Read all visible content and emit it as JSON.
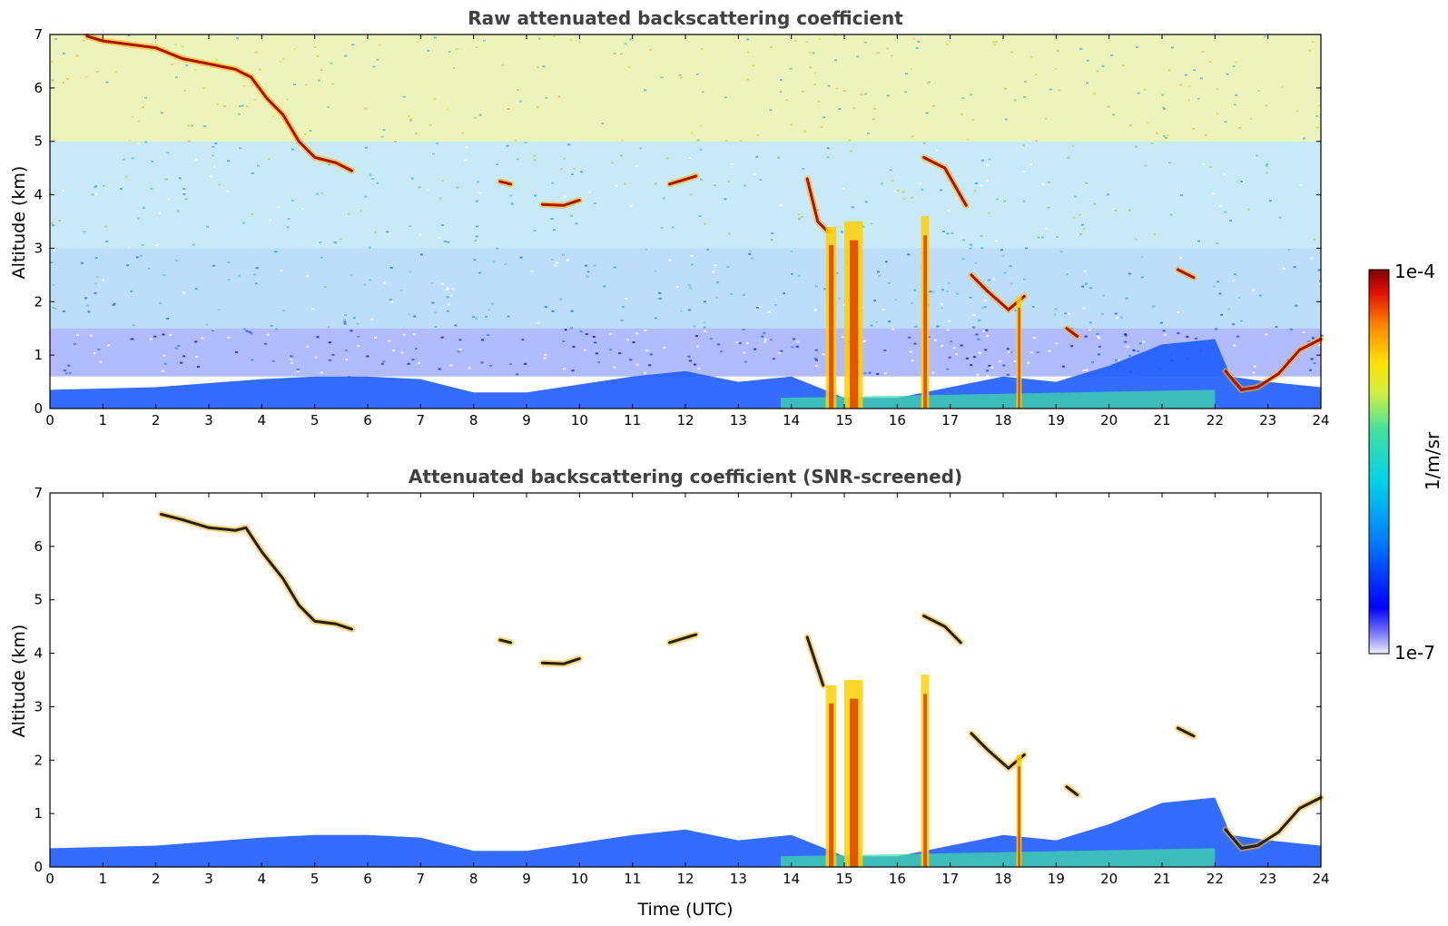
{
  "chart_data": [
    {
      "type": "heatmap",
      "title": "Raw attenuated backscattering coefficient",
      "xlabel": "",
      "ylabel": "Altitude (km)",
      "xlim": [
        0,
        24
      ],
      "ylim": [
        0,
        7
      ],
      "xticks": [
        "0",
        "1",
        "2",
        "3",
        "4",
        "5",
        "6",
        "7",
        "8",
        "9",
        "10",
        "11",
        "12",
        "13",
        "14",
        "15",
        "16",
        "17",
        "18",
        "19",
        "20",
        "21",
        "22",
        "23",
        "24"
      ],
      "yticks": [
        "0",
        "1",
        "2",
        "3",
        "4",
        "5",
        "6",
        "7"
      ],
      "noise": "full",
      "features": [
        {
          "kind": "cloud",
          "points": [
            [
              0.7,
              6.97
            ],
            [
              1.0,
              6.88
            ],
            [
              2.0,
              6.75
            ],
            [
              2.5,
              6.55
            ],
            [
              3.0,
              6.45
            ],
            [
              3.5,
              6.35
            ],
            [
              3.8,
              6.2
            ],
            [
              4.1,
              5.8
            ],
            [
              4.4,
              5.5
            ],
            [
              4.7,
              5.0
            ],
            [
              5.0,
              4.7
            ],
            [
              5.4,
              4.6
            ],
            [
              5.7,
              4.45
            ]
          ]
        },
        {
          "kind": "cloud",
          "points": [
            [
              8.5,
              4.25
            ],
            [
              8.7,
              4.2
            ]
          ]
        },
        {
          "kind": "cloud",
          "points": [
            [
              9.3,
              3.82
            ],
            [
              9.7,
              3.8
            ],
            [
              10.0,
              3.9
            ]
          ]
        },
        {
          "kind": "cloud",
          "points": [
            [
              11.7,
              4.2
            ],
            [
              12.2,
              4.35
            ]
          ]
        },
        {
          "kind": "cloud",
          "points": [
            [
              14.3,
              4.3
            ],
            [
              14.5,
              3.5
            ],
            [
              14.7,
              3.3
            ]
          ]
        },
        {
          "kind": "cloud",
          "points": [
            [
              16.5,
              4.7
            ],
            [
              16.9,
              4.5
            ],
            [
              17.3,
              3.8
            ]
          ]
        },
        {
          "kind": "cloud",
          "points": [
            [
              17.4,
              2.5
            ],
            [
              17.7,
              2.2
            ],
            [
              18.1,
              1.85
            ],
            [
              18.4,
              2.1
            ]
          ]
        },
        {
          "kind": "cloud",
          "points": [
            [
              19.2,
              1.5
            ],
            [
              19.4,
              1.35
            ]
          ]
        },
        {
          "kind": "cloud",
          "points": [
            [
              21.3,
              2.6
            ],
            [
              21.6,
              2.45
            ]
          ]
        },
        {
          "kind": "cloud",
          "points": [
            [
              22.2,
              0.7
            ],
            [
              22.5,
              0.35
            ],
            [
              22.8,
              0.4
            ],
            [
              23.2,
              0.65
            ],
            [
              23.6,
              1.1
            ],
            [
              24.0,
              1.3
            ]
          ]
        },
        {
          "kind": "column",
          "x": [
            14.65,
            14.85
          ],
          "top": 3.4
        },
        {
          "kind": "column",
          "x": [
            15.0,
            15.35
          ],
          "top": 3.5
        },
        {
          "kind": "column",
          "x": [
            16.45,
            16.6
          ],
          "top": 3.6
        },
        {
          "kind": "column",
          "x": [
            18.25,
            18.35
          ],
          "top": 2.1
        }
      ]
    },
    {
      "type": "heatmap",
      "title": "Attenuated backscattering coefficient (SNR-screened)",
      "xlabel": "Time (UTC)",
      "ylabel": "Altitude (km)",
      "xlim": [
        0,
        24
      ],
      "ylim": [
        0,
        7
      ],
      "xticks": [
        "0",
        "1",
        "2",
        "3",
        "4",
        "5",
        "6",
        "7",
        "8",
        "9",
        "10",
        "11",
        "12",
        "13",
        "14",
        "15",
        "16",
        "17",
        "18",
        "19",
        "20",
        "21",
        "22",
        "23",
        "24"
      ],
      "yticks": [
        "0",
        "1",
        "2",
        "3",
        "4",
        "5",
        "6",
        "7"
      ],
      "noise": "screened",
      "features": [
        {
          "kind": "cloud",
          "points": [
            [
              2.1,
              6.6
            ],
            [
              2.5,
              6.5
            ],
            [
              3.0,
              6.35
            ],
            [
              3.5,
              6.3
            ],
            [
              3.7,
              6.35
            ],
            [
              4.0,
              5.9
            ],
            [
              4.4,
              5.4
            ],
            [
              4.7,
              4.9
            ],
            [
              5.0,
              4.6
            ],
            [
              5.4,
              4.55
            ],
            [
              5.7,
              4.45
            ]
          ]
        },
        {
          "kind": "cloud",
          "points": [
            [
              8.5,
              4.25
            ],
            [
              8.7,
              4.2
            ]
          ]
        },
        {
          "kind": "cloud",
          "points": [
            [
              9.3,
              3.82
            ],
            [
              9.7,
              3.8
            ],
            [
              10.0,
              3.9
            ]
          ]
        },
        {
          "kind": "cloud",
          "points": [
            [
              11.7,
              4.2
            ],
            [
              12.2,
              4.35
            ]
          ]
        },
        {
          "kind": "cloud",
          "points": [
            [
              14.3,
              4.3
            ],
            [
              14.6,
              3.4
            ]
          ]
        },
        {
          "kind": "cloud",
          "points": [
            [
              16.5,
              4.7
            ],
            [
              16.9,
              4.5
            ],
            [
              17.2,
              4.2
            ]
          ]
        },
        {
          "kind": "cloud",
          "points": [
            [
              17.4,
              2.5
            ],
            [
              17.7,
              2.2
            ],
            [
              18.1,
              1.85
            ],
            [
              18.4,
              2.1
            ]
          ]
        },
        {
          "kind": "cloud",
          "points": [
            [
              19.2,
              1.5
            ],
            [
              19.4,
              1.35
            ]
          ]
        },
        {
          "kind": "cloud",
          "points": [
            [
              21.3,
              2.6
            ],
            [
              21.6,
              2.45
            ]
          ]
        },
        {
          "kind": "cloud",
          "points": [
            [
              22.2,
              0.7
            ],
            [
              22.5,
              0.35
            ],
            [
              22.8,
              0.4
            ],
            [
              23.2,
              0.65
            ],
            [
              23.6,
              1.1
            ],
            [
              24.0,
              1.3
            ]
          ]
        },
        {
          "kind": "column",
          "x": [
            14.65,
            14.85
          ],
          "top": 3.4
        },
        {
          "kind": "column",
          "x": [
            15.0,
            15.35
          ],
          "top": 3.5
        },
        {
          "kind": "column",
          "x": [
            16.45,
            16.6
          ],
          "top": 3.6
        },
        {
          "kind": "column",
          "x": [
            18.25,
            18.35
          ],
          "top": 2.1
        }
      ]
    }
  ],
  "colorbar": {
    "label": "1/m/sr",
    "max_label": "1e-4",
    "min_label": "1e-7",
    "colormap": [
      "#ffffff",
      "#0000ff",
      "#0080ff",
      "#00d4e8",
      "#40e0a0",
      "#d0f040",
      "#ffe000",
      "#ff8000",
      "#e01000",
      "#800000"
    ]
  }
}
